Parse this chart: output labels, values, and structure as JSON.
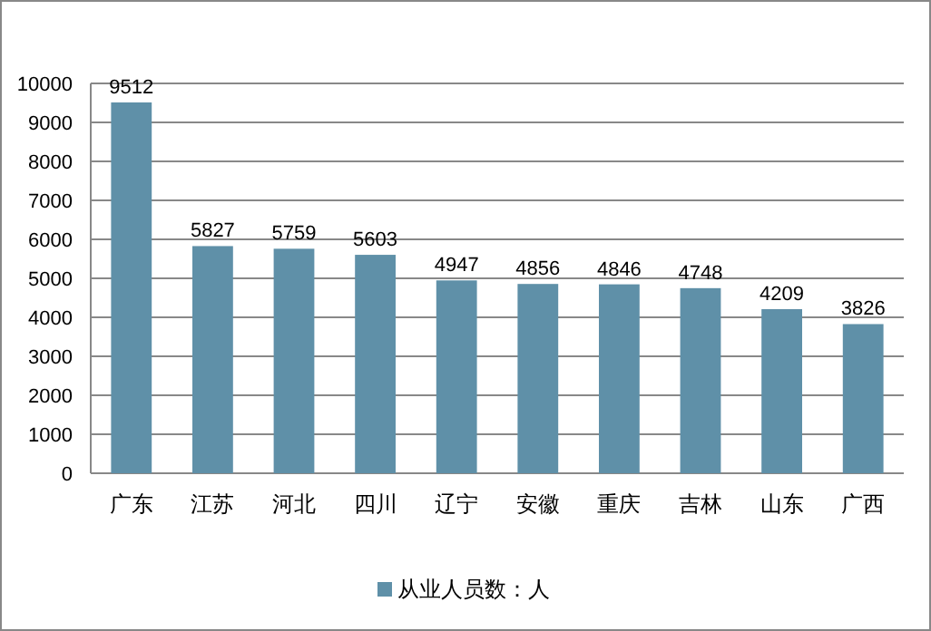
{
  "chart_data": {
    "type": "bar",
    "categories": [
      "广东",
      "江苏",
      "河北",
      "四川",
      "辽宁",
      "安徽",
      "重庆",
      "吉林",
      "山东",
      "广西"
    ],
    "series": [
      {
        "name": "从业人员数：人",
        "color": "#5f90a8",
        "values": [
          9512,
          5827,
          5759,
          5603,
          4947,
          4856,
          4846,
          4748,
          4209,
          3826
        ]
      }
    ],
    "ylim": [
      0,
      10000
    ],
    "yticks": [
      0,
      1000,
      2000,
      3000,
      4000,
      5000,
      6000,
      7000,
      8000,
      9000,
      10000
    ],
    "grid": "y",
    "data_labels": true,
    "legend": "bottom"
  }
}
